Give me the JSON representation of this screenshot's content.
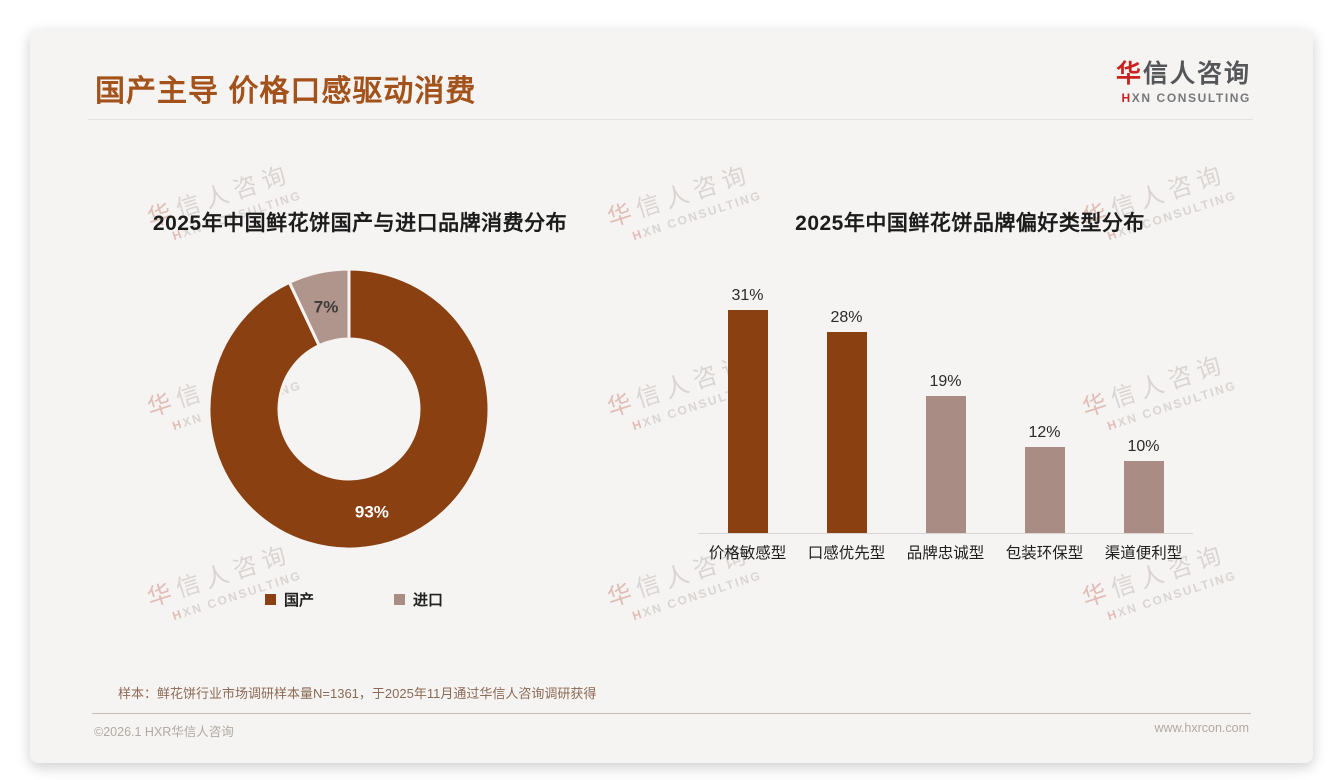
{
  "header": {
    "title": "国产主导 价格口感驱动消费",
    "logo": {
      "name_first": "华",
      "name_rest": "信人咨询",
      "sub_first": "H",
      "sub_rest": "XN CONSULTING"
    }
  },
  "watermark": {
    "line1_first": "华",
    "line1_rest": "信人咨询",
    "line2_first": "H",
    "line2_rest": "XN CONSULTING"
  },
  "chart_data": [
    {
      "type": "pie",
      "variant": "donut",
      "title": "2025年中国鲜花饼国产与进口品牌消费分布",
      "categories": [
        "国产",
        "进口"
      ],
      "values": [
        93,
        7
      ],
      "unit": "%",
      "colors": [
        "#8A4010",
        "#B0958D"
      ],
      "label_colors": [
        "#FFFFFF",
        "#3F3B3A"
      ],
      "legend_colors": [
        "#8A4010",
        "#A98D84"
      ],
      "legend_position": "bottom",
      "start_angle_deg": 0
    },
    {
      "type": "bar",
      "title": "2025年中国鲜花饼品牌偏好类型分布",
      "categories": [
        "价格敏感型",
        "口感优先型",
        "品牌忠诚型",
        "包装环保型",
        "渠道便利型"
      ],
      "values": [
        31,
        28,
        19,
        12,
        10
      ],
      "unit": "%",
      "colors": [
        "#8A4010",
        "#8A4010",
        "#A98D84",
        "#A98D84",
        "#A98D84"
      ],
      "ylim": [
        0,
        35
      ],
      "grid": false,
      "value_labels": "above"
    }
  ],
  "footnote": "样本：鲜花饼行业市场调研样本量N=1361，于2025年11月通过华信人咨询调研获得",
  "footer": {
    "copyright": "©2026.1 HXR华信人咨询",
    "website": "www.hxrcon.com"
  },
  "theme": {
    "accent_brown": "#A3521C",
    "bar_brown": "#8A4010",
    "bar_mauve": "#A98D84",
    "logo_red": "#C8231F",
    "card_bg": "#f5f4f2"
  }
}
